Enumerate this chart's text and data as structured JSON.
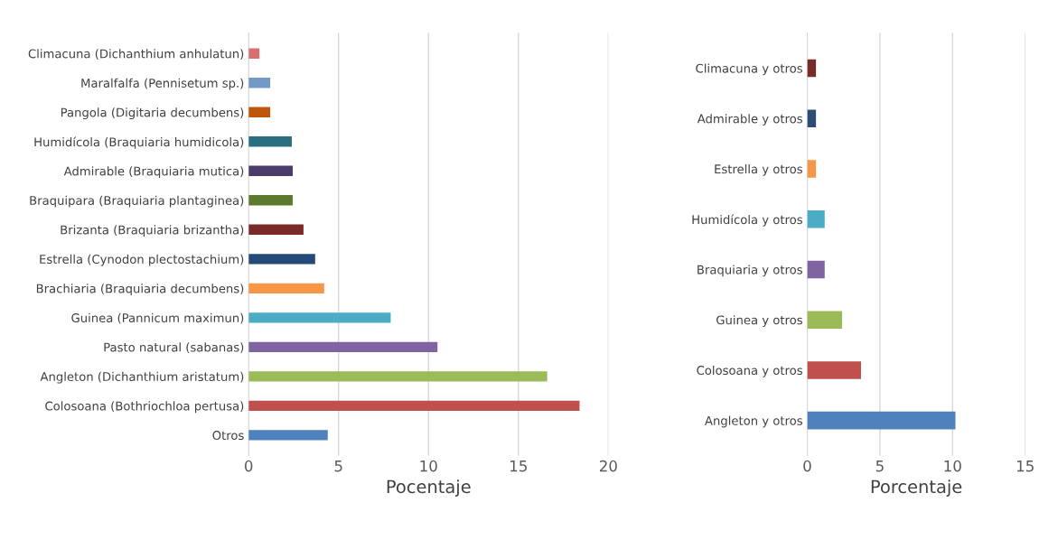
{
  "chart_data": [
    {
      "type": "bar",
      "orientation": "horizontal",
      "xlabel": "Pocentaje",
      "categories": [
        "Climacuna (Dichanthium anhulatun)",
        "Maralfalfa (Pennisetum sp.)",
        "Pangola (Digitaria decumbens)",
        "Humidícola (Braquiaria humidicola)",
        "Admirable (Braquiaria mutica)",
        "Braquipara (Braquiaria plantaginea)",
        "Brizanta (Braquiaria brizantha)",
        "Estrella (Cynodon plectostachium)",
        "Brachiaria (Braquiaria decumbens)",
        "Guinea (Pannicum maximun)",
        "Pasto natural (sabanas)",
        "Angleton (Dichanthium aristatum)",
        "Colosoana (Bothriochloa pertusa)",
        "Otros"
      ],
      "values": [
        0.6,
        1.2,
        1.2,
        2.4,
        2.45,
        2.45,
        3.05,
        3.7,
        4.2,
        7.9,
        10.5,
        16.6,
        18.4,
        4.4
      ],
      "colors": [
        "#d9706e",
        "#7399c6",
        "#c0560c",
        "#2a6f7f",
        "#4a3b6b",
        "#5c7a2e",
        "#7b2a2a",
        "#264a78",
        "#f79646",
        "#4bacc6",
        "#8064a2",
        "#9bbb59",
        "#c0504d",
        "#4f81bd"
      ],
      "xlim": [
        0,
        20
      ],
      "xticks": [
        0,
        5,
        10,
        15,
        20
      ],
      "grid": "x"
    },
    {
      "type": "bar",
      "orientation": "horizontal",
      "xlabel": "Porcentaje",
      "categories": [
        "Climacuna y otros",
        "Admirable y otros",
        "Estrella y otros",
        "Humidícola y otros",
        "Braquiaria y otros",
        "Guinea y otros",
        "Colosoana y otros",
        "Angleton y otros"
      ],
      "values": [
        0.6,
        0.6,
        0.6,
        1.2,
        1.2,
        2.4,
        3.7,
        10.2
      ],
      "colors": [
        "#772c2a",
        "#2c4d75",
        "#f79646",
        "#4bacc6",
        "#8064a2",
        "#9bbb59",
        "#c0504d",
        "#4f81bd"
      ],
      "xlim": [
        0,
        15
      ],
      "xticks": [
        0,
        5,
        10,
        15
      ],
      "grid": "x"
    }
  ]
}
